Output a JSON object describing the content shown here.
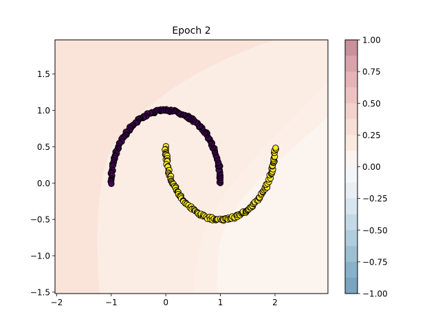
{
  "chart_data": {
    "type": "scatter",
    "title": "Epoch 2",
    "xlabel": "",
    "ylabel": "",
    "xlim": [
      -2.03,
      2.97
    ],
    "ylim": [
      -1.52,
      1.97
    ],
    "x_ticks": [
      -2,
      -1,
      0,
      1,
      2
    ],
    "y_ticks": [
      -1.5,
      -1.0,
      -0.5,
      0.0,
      0.5,
      1.0,
      1.5
    ],
    "grid": false,
    "legend": "none",
    "series": [
      {
        "class": 0,
        "color": "#440154",
        "shape": "upper half-moon",
        "center": [
          0,
          0
        ],
        "radius": 1.0,
        "angle_range_deg": [
          0,
          180
        ]
      },
      {
        "class": 1,
        "color": "#fde725",
        "shape": "lower half-moon",
        "center": [
          1,
          0.5
        ],
        "radius": 1.0,
        "angle_range_deg": [
          180,
          360
        ]
      }
    ],
    "decision_boundary": {
      "type": "filled-contour",
      "note": "faint pink shading (values ~0.1-0.3) over the plot area"
    },
    "colorbar": {
      "min": -1.0,
      "max": 1.0,
      "ticks": [
        1.0,
        0.75,
        0.5,
        0.25,
        0.0,
        -0.25,
        -0.5,
        -0.75,
        -1.0
      ],
      "tick_labels": [
        "1.00",
        "0.75",
        "0.50",
        "0.25",
        "0.00",
        "−0.25",
        "−0.50",
        "−0.75",
        "−1.00"
      ],
      "levels": 16,
      "colors_top_to_bottom": [
        "#c8919c",
        "#d8a3ab",
        "#e4b4b6",
        "#edc3c1",
        "#f3d2cb",
        "#f7dfd5",
        "#fae9e1",
        "#fcf3ee",
        "#f3f6f8",
        "#e7eff4",
        "#d6e5ee",
        "#c3d9e6",
        "#b0ccdd",
        "#9dbfd4",
        "#8ab1ca",
        "#7aa4c0"
      ]
    }
  }
}
